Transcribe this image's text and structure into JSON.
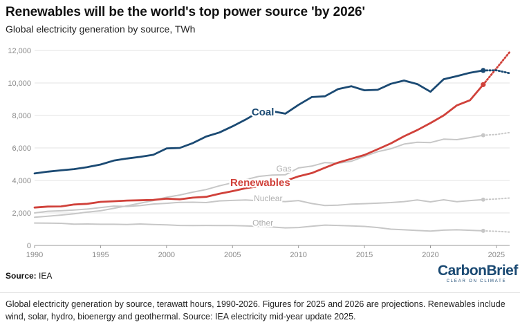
{
  "header": {
    "title": "Renewables will be the world's top power source 'by 2026'",
    "subtitle": "Global electricity generation by source, TWh"
  },
  "source": {
    "label": "Source:",
    "value": "IEA"
  },
  "logo": {
    "text": "CarbonBrief",
    "tagline": "CLEAR ON CLIMATE",
    "color": "#1b4a73"
  },
  "caption": "Global electricity generation by source, terawatt hours, 1990-2026. Figures for 2025 and 2026 are projections. Renewables include wind, solar, hydro, bioenergy and geothermal. Source: IEA electricity mid-year update 2025.",
  "chart_data": {
    "type": "line",
    "xlim": [
      1990,
      2026
    ],
    "ylim": [
      0,
      12000
    ],
    "x_ticks": [
      1990,
      1995,
      2000,
      2005,
      2010,
      2015,
      2020,
      2025
    ],
    "y_ticks": [
      0,
      2000,
      4000,
      6000,
      8000,
      10000,
      12000
    ],
    "y_tick_labels": [
      "0",
      "2,000",
      "4,000",
      "6,000",
      "8,000",
      "10,000",
      "12,000"
    ],
    "grid": true,
    "projection_from": 2024,
    "x": [
      1990,
      1991,
      1992,
      1993,
      1994,
      1995,
      1996,
      1997,
      1998,
      1999,
      2000,
      2001,
      2002,
      2003,
      2004,
      2005,
      2006,
      2007,
      2008,
      2009,
      2010,
      2011,
      2012,
      2013,
      2014,
      2015,
      2016,
      2017,
      2018,
      2019,
      2020,
      2021,
      2022,
      2023,
      2024,
      2025,
      2026
    ],
    "series": [
      {
        "name": "Coal",
        "color": "#1b4a73",
        "values": [
          4430,
          4540,
          4620,
          4700,
          4820,
          4980,
          5220,
          5350,
          5450,
          5580,
          5970,
          6000,
          6300,
          6700,
          6950,
          7330,
          7750,
          8220,
          8260,
          8110,
          8650,
          9130,
          9180,
          9620,
          9800,
          9550,
          9580,
          9950,
          10150,
          9930,
          9460,
          10230,
          10420,
          10630,
          10770,
          10780,
          10600
        ]
      },
      {
        "name": "Renewables",
        "color": "#d0413a",
        "values": [
          2330,
          2390,
          2400,
          2520,
          2560,
          2680,
          2720,
          2760,
          2780,
          2800,
          2880,
          2840,
          2940,
          2990,
          3180,
          3340,
          3520,
          3640,
          3820,
          3970,
          4250,
          4450,
          4780,
          5100,
          5330,
          5570,
          5920,
          6280,
          6720,
          7100,
          7530,
          8000,
          8620,
          8940,
          9900,
          10900,
          11900
        ]
      },
      {
        "name": "Gas",
        "color": "#c7c7c7",
        "values": [
          1730,
          1800,
          1870,
          1950,
          2050,
          2130,
          2280,
          2440,
          2600,
          2760,
          2960,
          3100,
          3280,
          3440,
          3670,
          3860,
          4050,
          4250,
          4330,
          4350,
          4770,
          4880,
          5100,
          5060,
          5180,
          5480,
          5770,
          5950,
          6240,
          6350,
          6330,
          6540,
          6510,
          6640,
          6780,
          6830,
          6950
        ]
      },
      {
        "name": "Nuclear",
        "color": "#c7c7c7",
        "values": [
          2000,
          2100,
          2130,
          2180,
          2240,
          2330,
          2420,
          2400,
          2450,
          2550,
          2590,
          2650,
          2660,
          2640,
          2740,
          2770,
          2800,
          2750,
          2730,
          2700,
          2760,
          2580,
          2460,
          2480,
          2540,
          2570,
          2600,
          2640,
          2700,
          2800,
          2680,
          2810,
          2690,
          2760,
          2820,
          2860,
          2920
        ]
      },
      {
        "name": "Other",
        "color": "#c7c7c7",
        "values": [
          1380,
          1370,
          1360,
          1310,
          1320,
          1300,
          1300,
          1290,
          1320,
          1290,
          1270,
          1230,
          1220,
          1230,
          1220,
          1220,
          1200,
          1170,
          1130,
          1080,
          1100,
          1180,
          1250,
          1230,
          1200,
          1170,
          1100,
          1000,
          960,
          920,
          880,
          940,
          960,
          930,
          900,
          870,
          820
        ]
      }
    ],
    "annotations": [
      {
        "series": "Coal",
        "text": "Coal",
        "x": 2007.3,
        "y": 8000,
        "color": "#1b4a73"
      },
      {
        "series": "Gas",
        "text": "Gas",
        "x": 2008.9,
        "y": 4550,
        "color": "#b0b0b0"
      },
      {
        "series": "Renewables",
        "text": "Renewables",
        "x": 2007.1,
        "y": 3670,
        "color": "#d0413a"
      },
      {
        "series": "Nuclear",
        "text": "Nuclear",
        "x": 2007.7,
        "y": 2730,
        "color": "#b0b0b0"
      },
      {
        "series": "Other",
        "text": "Other",
        "x": 2007.3,
        "y": 1220,
        "color": "#b0b0b0"
      }
    ]
  }
}
